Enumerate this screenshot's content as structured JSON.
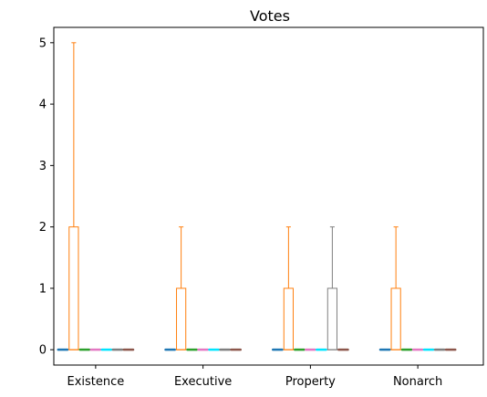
{
  "chart_data": {
    "type": "box",
    "title": "Votes",
    "xlabel": "",
    "ylabel": "",
    "categories": [
      "Existence",
      "Executive",
      "Property",
      "Nonarch"
    ],
    "ylim": [
      -0.25,
      5.25
    ],
    "yticks": [
      0,
      1,
      2,
      3,
      4,
      5
    ],
    "grid": false,
    "series": [
      {
        "color": "#1f77b4",
        "boxes": [
          {
            "q1": 0,
            "median": 0,
            "q3": 0,
            "whislo": 0,
            "whishi": 0
          },
          {
            "q1": 0,
            "median": 0,
            "q3": 0,
            "whislo": 0,
            "whishi": 0
          },
          {
            "q1": 0,
            "median": 0,
            "q3": 0,
            "whislo": 0,
            "whishi": 0
          },
          {
            "q1": 0,
            "median": 0,
            "q3": 0,
            "whislo": 0,
            "whishi": 0
          }
        ]
      },
      {
        "color": "#ff7f0e",
        "boxes": [
          {
            "q1": 0,
            "median": 0,
            "q3": 2,
            "whislo": 0,
            "whishi": 5
          },
          {
            "q1": 0,
            "median": 0,
            "q3": 1,
            "whislo": 0,
            "whishi": 2
          },
          {
            "q1": 0,
            "median": 0,
            "q3": 1,
            "whislo": 0,
            "whishi": 2
          },
          {
            "q1": 0,
            "median": 0,
            "q3": 1,
            "whislo": 0,
            "whishi": 2
          }
        ]
      },
      {
        "color": "#2ca02c",
        "boxes": [
          {
            "q1": 0,
            "median": 0,
            "q3": 0,
            "whislo": 0,
            "whishi": 0
          },
          {
            "q1": 0,
            "median": 0,
            "q3": 0,
            "whislo": 0,
            "whishi": 0
          },
          {
            "q1": 0,
            "median": 0,
            "q3": 0,
            "whislo": 0,
            "whishi": 0
          },
          {
            "q1": 0,
            "median": 0,
            "q3": 0,
            "whislo": 0,
            "whishi": 0
          }
        ]
      },
      {
        "color": "#e377c2",
        "boxes": [
          {
            "q1": 0,
            "median": 0,
            "q3": 0,
            "whislo": 0,
            "whishi": 0
          },
          {
            "q1": 0,
            "median": 0,
            "q3": 0,
            "whislo": 0,
            "whishi": 0
          },
          {
            "q1": 0,
            "median": 0,
            "q3": 0,
            "whislo": 0,
            "whishi": 0
          },
          {
            "q1": 0,
            "median": 0,
            "q3": 0,
            "whislo": 0,
            "whishi": 0
          }
        ]
      },
      {
        "color": "#00e5ff",
        "boxes": [
          {
            "q1": 0,
            "median": 0,
            "q3": 0,
            "whislo": 0,
            "whishi": 0
          },
          {
            "q1": 0,
            "median": 0,
            "q3": 0,
            "whislo": 0,
            "whishi": 0
          },
          {
            "q1": 0,
            "median": 0,
            "q3": 0,
            "whislo": 0,
            "whishi": 0
          },
          {
            "q1": 0,
            "median": 0,
            "q3": 0,
            "whislo": 0,
            "whishi": 0
          }
        ]
      },
      {
        "color": "#7f7f7f",
        "boxes": [
          {
            "q1": 0,
            "median": 0,
            "q3": 0,
            "whislo": 0,
            "whishi": 0
          },
          {
            "q1": 0,
            "median": 0,
            "q3": 0,
            "whislo": 0,
            "whishi": 0
          },
          {
            "q1": 0,
            "median": 0,
            "q3": 1,
            "whislo": 0,
            "whishi": 2
          },
          {
            "q1": 0,
            "median": 0,
            "q3": 0,
            "whislo": 0,
            "whishi": 0
          }
        ]
      },
      {
        "color": "#8c564b",
        "boxes": [
          {
            "q1": 0,
            "median": 0,
            "q3": 0,
            "whislo": 0,
            "whishi": 0
          },
          {
            "q1": 0,
            "median": 0,
            "q3": 0,
            "whislo": 0,
            "whishi": 0
          },
          {
            "q1": 0,
            "median": 0,
            "q3": 0,
            "whislo": 0,
            "whishi": 0
          },
          {
            "q1": 0,
            "median": 0,
            "q3": 0,
            "whislo": 0,
            "whishi": 0
          }
        ]
      }
    ]
  }
}
